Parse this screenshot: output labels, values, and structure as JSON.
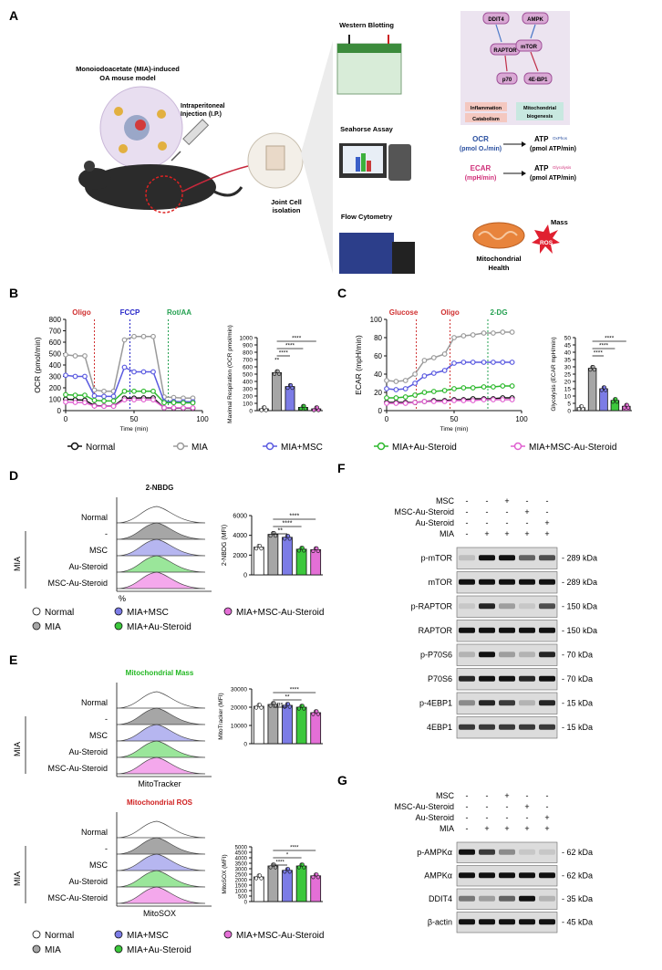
{
  "panel_labels": {
    "A": "A",
    "B": "B",
    "C": "C",
    "D": "D",
    "E": "E",
    "F": "F",
    "G": "G"
  },
  "panelA": {
    "model_title_1": "Monoiodoacetate (MIA)-induced",
    "model_title_2": "OA mouse model",
    "injection_1": "Intraperitoneal",
    "injection_2": "Injection (I.P.)",
    "joint_1": "Joint Cell",
    "joint_2": "isolation",
    "wb": "Western Blotting",
    "seahorse": "Seahorse Assay",
    "flow": "Flow Cytometry",
    "pathway": {
      "ddit4": "DDIT4",
      "ampk": "AMPK",
      "raptor": "RAPTOR",
      "mtor": "mTOR",
      "p70": "p70",
      "ebp1": "4E-BP1",
      "inflammation": "Inflammation",
      "catabolism": "Catabolism",
      "mito1": "Mitochondrial",
      "mito2": "biogenesis"
    },
    "ocr_1": "OCR",
    "ocr_2": "(pmol O₂/min)",
    "atp_ox": "ATP",
    "atp_ox_sup": "OxPhos",
    "atp_ox_2": "(pmol ATP/min)",
    "ecar_1": "ECAR",
    "ecar_2": "(mpH/min)",
    "atp_gly": "ATP",
    "atp_gly_sup": "Glycolysis",
    "atp_gly_2": "(pmol ATP/min)",
    "mass": "Mass",
    "ros": "ROS",
    "health_1": "Mitochondrial",
    "health_2": "Health"
  },
  "colors": {
    "normal": "#ffffff",
    "mia": "#a6a6a6",
    "mia_msc": "#7c7ce6",
    "mia_au": "#3cc83c",
    "mia_msc_au": "#e46fd6",
    "oligo": "#d03030",
    "fccp": "#2525c8",
    "rotaa": "#23a050",
    "glucose": "#d03030",
    "dg": "#23a050",
    "mass_title": "#24b824",
    "ros_title": "#d02020",
    "ocr_text": "#2b50a0",
    "ecar_text": "#d0307a"
  },
  "legend_bc": [
    "Normal",
    "MIA",
    "MIA+MSC",
    "MIA+Au-Steroid",
    "MIA+MSC-Au-Steroid"
  ],
  "legend_de": [
    "Normal",
    "MIA",
    "MIA+MSC",
    "MIA+Au-Steroid",
    "MIA+MSC-Au-Steroid"
  ],
  "chart_data": [
    {
      "id": "ocr_trace",
      "type": "line",
      "title": "",
      "xlabel": "Time (min)",
      "ylabel": "OCR (pmol/min)",
      "xlim": [
        0,
        100
      ],
      "ylim": [
        0,
        800
      ],
      "xticks": [
        "0",
        "50",
        "100"
      ],
      "yticks": [
        "0",
        "100",
        "200",
        "300",
        "400",
        "500",
        "600",
        "700",
        "800"
      ],
      "injections": [
        "Oligo",
        "FCCP",
        "Rot/AA"
      ],
      "x": [
        0,
        7,
        14,
        21,
        28,
        35,
        43,
        50,
        57,
        64,
        72,
        79,
        86,
        93
      ],
      "series": [
        {
          "name": "Normal",
          "values": [
            100,
            95,
            92,
            45,
            40,
            40,
            110,
            110,
            112,
            112,
            25,
            22,
            22,
            20
          ]
        },
        {
          "name": "MIA",
          "values": [
            490,
            480,
            480,
            180,
            170,
            170,
            620,
            650,
            650,
            650,
            120,
            115,
            110,
            110
          ]
        },
        {
          "name": "MIA+MSC",
          "values": [
            310,
            300,
            300,
            130,
            125,
            125,
            380,
            340,
            340,
            340,
            80,
            80,
            78,
            78
          ]
        },
        {
          "name": "MIA+Au-Steroid",
          "values": [
            140,
            135,
            135,
            90,
            85,
            85,
            170,
            170,
            170,
            170,
            70,
            70,
            68,
            68
          ]
        },
        {
          "name": "MIA+MSC-Au-Steroid",
          "values": [
            75,
            72,
            70,
            40,
            38,
            38,
            95,
            95,
            95,
            95,
            25,
            25,
            24,
            24
          ]
        }
      ]
    },
    {
      "id": "max_resp",
      "type": "bar",
      "title": "",
      "xlabel": "",
      "ylabel": "Maximal Respiration (OCR pmol/min)",
      "ylim": [
        0,
        1000
      ],
      "yticks": [
        "0",
        "100",
        "200",
        "300",
        "400",
        "500",
        "600",
        "700",
        "800",
        "900",
        "1000"
      ],
      "categories": [
        "Normal",
        "MIA",
        "MIA+MSC",
        "MIA+Au-Steroid",
        "MIA+MSC-Au-Steroid"
      ],
      "values": [
        25,
        520,
        330,
        45,
        25
      ],
      "sig": [
        "****",
        "****",
        "****",
        "**"
      ]
    },
    {
      "id": "ecar_trace",
      "type": "line",
      "title": "",
      "xlabel": "Time (min)",
      "ylabel": "ECAR (mpH/min)",
      "xlim": [
        0,
        100
      ],
      "ylim": [
        0,
        100
      ],
      "xticks": [
        "0",
        "50",
        "100"
      ],
      "yticks": [
        "0",
        "20",
        "40",
        "60",
        "80",
        "100"
      ],
      "injections": [
        "Glucose",
        "Oligo",
        "2-DG"
      ],
      "x": [
        0,
        7,
        14,
        21,
        28,
        35,
        43,
        50,
        57,
        64,
        72,
        79,
        86,
        93
      ],
      "series": [
        {
          "name": "Normal",
          "values": [
            9,
            9,
            9,
            9,
            10,
            11,
            11,
            12,
            12,
            13,
            13,
            13,
            14,
            14
          ]
        },
        {
          "name": "MIA",
          "values": [
            33,
            32,
            33,
            40,
            55,
            58,
            62,
            80,
            82,
            83,
            85,
            85,
            86,
            86
          ]
        },
        {
          "name": "MIA+MSC",
          "values": [
            24,
            23,
            24,
            30,
            38,
            41,
            44,
            52,
            53,
            53,
            53,
            53,
            53,
            53
          ]
        },
        {
          "name": "MIA+Au-Steroid",
          "values": [
            14,
            14,
            15,
            17,
            20,
            21,
            22,
            24,
            25,
            25,
            26,
            26,
            27,
            27
          ]
        },
        {
          "name": "MIA+MSC-Au-Steroid",
          "values": [
            8,
            8,
            8,
            9,
            10,
            10,
            10,
            11,
            11,
            11,
            12,
            12,
            12,
            12
          ]
        }
      ]
    },
    {
      "id": "glycolysis",
      "type": "bar",
      "title": "",
      "xlabel": "",
      "ylabel": "Glycolysis (ECAR mpH/min)",
      "ylim": [
        0,
        50
      ],
      "yticks": [
        "0",
        "5",
        "10",
        "15",
        "20",
        "25",
        "30",
        "35",
        "40",
        "45",
        "50"
      ],
      "categories": [
        "Normal",
        "MIA",
        "MIA+MSC",
        "MIA+Au-Steroid",
        "MIA+MSC-Au-Steroid"
      ],
      "values": [
        2,
        29,
        15,
        7,
        3
      ],
      "sig": [
        "****",
        "****",
        "****"
      ]
    },
    {
      "id": "nbdg",
      "type": "bar",
      "title": "2-NBDG",
      "xlabel": "",
      "ylabel": "2-NBDG (MFI)",
      "ylim": [
        0,
        6000
      ],
      "yticks": [
        "0",
        "2000",
        "4000",
        "6000"
      ],
      "categories": [
        "Normal",
        "MIA",
        "MIA+MSC",
        "MIA+Au-Steroid",
        "MIA+MSC-Au-Steroid"
      ],
      "values": [
        2800,
        4100,
        3800,
        2600,
        2550
      ],
      "sig": [
        "****",
        "****",
        "**"
      ]
    },
    {
      "id": "mitotracker",
      "type": "bar",
      "title": "Mitochondrial Mass",
      "xlabel": "",
      "ylabel": "MitoTracker (MFI)",
      "ylim": [
        0,
        30000
      ],
      "yticks": [
        "0",
        "10000",
        "20000",
        "30000"
      ],
      "categories": [
        "Normal",
        "MIA",
        "MIA+MSC",
        "MIA+Au-Steroid",
        "MIA+MSC-Au-Steroid"
      ],
      "values": [
        20500,
        21500,
        21000,
        20000,
        17000
      ],
      "sig": [
        "****",
        "**",
        "ns"
      ]
    },
    {
      "id": "mitosox",
      "type": "bar",
      "title": "Mitochondrial ROS",
      "xlabel": "",
      "ylabel": "MitoSOX (MFI)",
      "ylim": [
        0,
        5000
      ],
      "yticks": [
        "0",
        "500",
        "1000",
        "1500",
        "2000",
        "2500",
        "3000",
        "3500",
        "4000",
        "4500",
        "5000"
      ],
      "categories": [
        "Normal",
        "MIA",
        "MIA+MSC",
        "MIA+Au-Steroid",
        "MIA+MSC-Au-Steroid"
      ],
      "values": [
        2250,
        3250,
        2850,
        3250,
        2350
      ],
      "sig": [
        "****",
        "*",
        "****"
      ]
    }
  ],
  "histo_d": {
    "title": "2-NBDG",
    "rows": [
      "Normal",
      "-",
      "MSC",
      "Au-Steroid",
      "MSC-Au-Steroid"
    ],
    "group": "MIA",
    "xlab": "%"
  },
  "histo_e1": {
    "title": "Mitochondrial Mass",
    "rows": [
      "Normal",
      "-",
      "MSC",
      "Au-Steroid",
      "MSC-Au-Steroid"
    ],
    "group": "MIA",
    "xlab": "MitoTracker"
  },
  "histo_e2": {
    "title": "Mitochondrial ROS",
    "rows": [
      "Normal",
      "-",
      "MSC",
      "Au-Steroid",
      "MSC-Au-Steroid"
    ],
    "group": "MIA",
    "xlab": "MitoSOX"
  },
  "blotF": {
    "conditions": [
      "MSC",
      "MSC-Au-Steroid",
      "Au-Steroid",
      "MIA"
    ],
    "signs": [
      [
        "-",
        "-",
        "+",
        "-",
        "-"
      ],
      [
        "-",
        "-",
        "-",
        "+",
        "-"
      ],
      [
        "-",
        "-",
        "-",
        "-",
        "+"
      ],
      [
        "-",
        "+",
        "+",
        "+",
        "+"
      ]
    ],
    "rows": [
      {
        "name": "p-mTOR",
        "kda": "289 kDa"
      },
      {
        "name": "mTOR",
        "kda": "289 kDa"
      },
      {
        "name": "p-RAPTOR",
        "kda": "150 kDa"
      },
      {
        "name": "RAPTOR",
        "kda": "150 kDa"
      },
      {
        "name": "p-P70S6",
        "kda": "70 kDa"
      },
      {
        "name": "P70S6",
        "kda": "70 kDa"
      },
      {
        "name": "p-4EBP1",
        "kda": "15 kDa"
      },
      {
        "name": "4EBP1",
        "kda": "15 kDa"
      }
    ]
  },
  "blotG": {
    "conditions": [
      "MSC",
      "MSC-Au-Steroid",
      "Au-Steroid",
      "MIA"
    ],
    "signs": [
      [
        "-",
        "-",
        "+",
        "-",
        "-"
      ],
      [
        "-",
        "-",
        "-",
        "+",
        "-"
      ],
      [
        "-",
        "-",
        "-",
        "-",
        "+"
      ],
      [
        "-",
        "+",
        "+",
        "+",
        "+"
      ]
    ],
    "rows": [
      {
        "name": "p-AMPKα",
        "kda": "62 kDa"
      },
      {
        "name": "AMPKα",
        "kda": "62 kDa"
      },
      {
        "name": "DDIT4",
        "kda": "35 kDa"
      },
      {
        "name": "β-actin",
        "kda": "45 kDa"
      }
    ]
  }
}
